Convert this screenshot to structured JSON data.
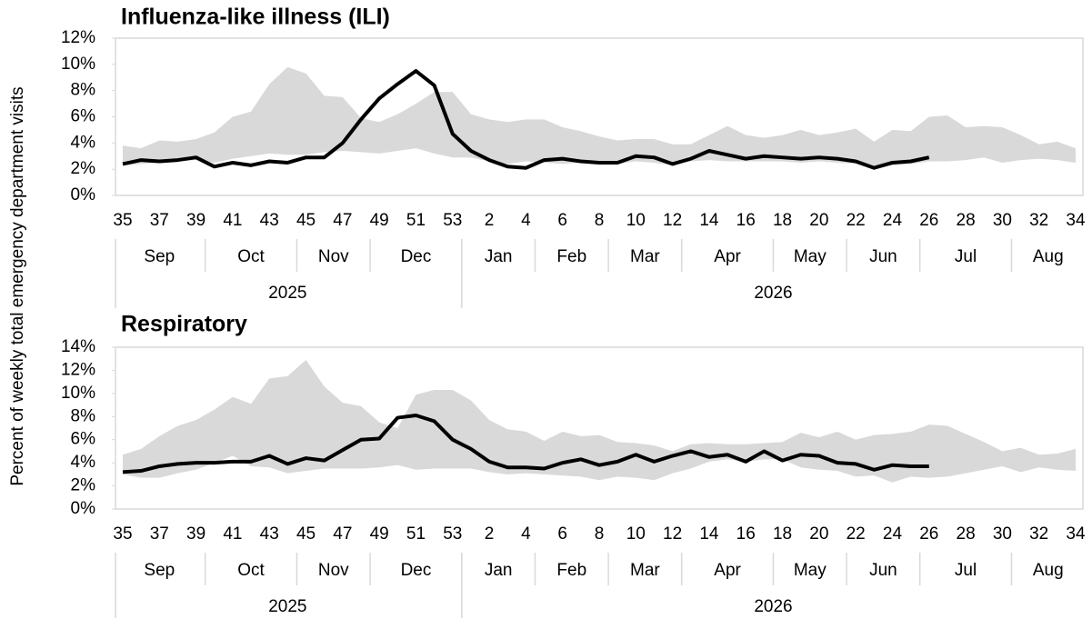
{
  "y_label": "Percent of weekly total emergency department visits",
  "chart_data": [
    {
      "type": "line",
      "title": "Influenza-like illness (ILI)",
      "categories": [
        "35",
        null,
        "37",
        null,
        "39",
        null,
        "41",
        null,
        "43",
        null,
        "45",
        null,
        "47",
        null,
        "49",
        null,
        "51",
        null,
        "53",
        null,
        "2",
        null,
        "4",
        null,
        "6",
        null,
        "8",
        null,
        "10",
        null,
        "12",
        null,
        "14",
        null,
        "16",
        null,
        "18",
        null,
        "20",
        null,
        "22",
        null,
        "24",
        null,
        "26",
        null,
        "28",
        null,
        "30",
        null,
        "32",
        null,
        "34"
      ],
      "month_groups": [
        {
          "label": "Sep",
          "span": 5
        },
        {
          "label": "Oct",
          "span": 5
        },
        {
          "label": "Nov",
          "span": 4
        },
        {
          "label": "Dec",
          "span": 5
        },
        {
          "label": "Jan",
          "span": 4
        },
        {
          "label": "Feb",
          "span": 4
        },
        {
          "label": "Mar",
          "span": 4
        },
        {
          "label": "Apr",
          "span": 5
        },
        {
          "label": "May",
          "span": 4
        },
        {
          "label": "Jun",
          "span": 4
        },
        {
          "label": "Jul",
          "span": 5
        },
        {
          "label": "Aug",
          "span": 4
        }
      ],
      "year_groups": [
        {
          "label": "2025",
          "span": 19
        },
        {
          "label": "2026",
          "span": 34
        }
      ],
      "band": {
        "color": "#d9d9d9",
        "upper": [
          3.8,
          3.6,
          4.2,
          4.1,
          4.3,
          4.8,
          6.0,
          6.4,
          8.5,
          9.8,
          9.3,
          7.6,
          7.5,
          5.9,
          5.6,
          6.2,
          7.0,
          7.9,
          7.9,
          6.2,
          5.8,
          5.6,
          5.8,
          5.8,
          5.2,
          4.9,
          4.5,
          4.2,
          4.3,
          4.3,
          3.9,
          3.9,
          4.6,
          5.3,
          4.6,
          4.4,
          4.6,
          5.0,
          4.6,
          4.8,
          5.1,
          4.1,
          5.0,
          4.9,
          6.0,
          6.1,
          5.2,
          5.3,
          5.2,
          4.6,
          3.9,
          4.1,
          3.6
        ],
        "lower": [
          2.3,
          2.4,
          2.5,
          2.6,
          2.7,
          2.5,
          2.8,
          3.0,
          3.2,
          3.1,
          3.1,
          3.3,
          3.4,
          3.3,
          3.2,
          3.4,
          3.6,
          3.2,
          2.9,
          2.9,
          2.6,
          2.4,
          2.6,
          2.5,
          2.4,
          2.5,
          2.4,
          2.4,
          2.6,
          2.5,
          2.3,
          2.6,
          2.7,
          2.6,
          2.6,
          2.6,
          2.6,
          2.5,
          2.6,
          2.5,
          2.4,
          2.0,
          2.3,
          2.4,
          2.6,
          2.6,
          2.7,
          2.9,
          2.5,
          2.7,
          2.8,
          2.7,
          2.5
        ]
      },
      "line": {
        "color": "#000000",
        "values": [
          2.4,
          2.7,
          2.6,
          2.7,
          2.9,
          2.2,
          2.5,
          2.3,
          2.6,
          2.5,
          2.9,
          2.9,
          4.0,
          5.8,
          7.4,
          8.5,
          9.5,
          8.4,
          4.7,
          3.4,
          2.7,
          2.2,
          2.1,
          2.7,
          2.8,
          2.6,
          2.5,
          2.5,
          3.0,
          2.9,
          2.4,
          2.8,
          3.4,
          3.1,
          2.8,
          3.0,
          2.9,
          2.8,
          2.9,
          2.8,
          2.6,
          2.1,
          2.5,
          2.6,
          2.9,
          null,
          null,
          null,
          null,
          null,
          null,
          null,
          null
        ]
      },
      "ylim": [
        0,
        12
      ],
      "yticks": [
        {
          "value": 0,
          "label": "0%"
        },
        {
          "value": 2,
          "label": "2%"
        },
        {
          "value": 4,
          "label": "4%"
        },
        {
          "value": 6,
          "label": "6%"
        },
        {
          "value": 8,
          "label": "8%"
        },
        {
          "value": 10,
          "label": "10%"
        },
        {
          "value": 12,
          "label": "12%"
        }
      ]
    },
    {
      "type": "line",
      "title": "Respiratory",
      "categories": [
        "35",
        null,
        "37",
        null,
        "39",
        null,
        "41",
        null,
        "43",
        null,
        "45",
        null,
        "47",
        null,
        "49",
        null,
        "51",
        null,
        "53",
        null,
        "2",
        null,
        "4",
        null,
        "6",
        null,
        "8",
        null,
        "10",
        null,
        "12",
        null,
        "14",
        null,
        "16",
        null,
        "18",
        null,
        "20",
        null,
        "22",
        null,
        "24",
        null,
        "26",
        null,
        "28",
        null,
        "30",
        null,
        "32",
        null,
        "34"
      ],
      "month_groups": [
        {
          "label": "Sep",
          "span": 5
        },
        {
          "label": "Oct",
          "span": 5
        },
        {
          "label": "Nov",
          "span": 4
        },
        {
          "label": "Dec",
          "span": 5
        },
        {
          "label": "Jan",
          "span": 4
        },
        {
          "label": "Feb",
          "span": 4
        },
        {
          "label": "Mar",
          "span": 4
        },
        {
          "label": "Apr",
          "span": 5
        },
        {
          "label": "May",
          "span": 4
        },
        {
          "label": "Jun",
          "span": 4
        },
        {
          "label": "Jul",
          "span": 5
        },
        {
          "label": "Aug",
          "span": 4
        }
      ],
      "year_groups": [
        {
          "label": "2025",
          "span": 19
        },
        {
          "label": "2026",
          "span": 34
        }
      ],
      "band": {
        "color": "#d9d9d9",
        "upper": [
          4.7,
          5.2,
          6.3,
          7.2,
          7.7,
          8.6,
          9.7,
          9.1,
          11.3,
          11.5,
          12.9,
          10.6,
          9.2,
          8.9,
          7.5,
          7.0,
          9.9,
          10.3,
          10.3,
          9.4,
          7.7,
          6.9,
          6.7,
          5.9,
          6.7,
          6.3,
          6.4,
          5.8,
          5.7,
          5.5,
          5.0,
          5.6,
          5.7,
          5.6,
          5.6,
          5.7,
          5.8,
          6.6,
          6.2,
          6.7,
          6.0,
          6.4,
          6.5,
          6.7,
          7.3,
          7.2,
          6.5,
          5.8,
          5.0,
          5.3,
          4.7,
          4.8,
          5.2
        ],
        "lower": [
          3.0,
          2.7,
          2.7,
          3.1,
          3.4,
          4.0,
          4.6,
          3.7,
          3.6,
          3.1,
          3.3,
          3.5,
          3.5,
          3.5,
          3.6,
          3.8,
          3.4,
          3.5,
          3.5,
          3.5,
          3.2,
          3.0,
          3.1,
          3.0,
          2.9,
          2.8,
          2.5,
          2.8,
          2.7,
          2.5,
          3.1,
          3.5,
          4.1,
          4.3,
          4.1,
          4.3,
          4.3,
          3.6,
          3.4,
          3.3,
          2.8,
          2.9,
          2.3,
          2.8,
          2.7,
          2.8,
          3.1,
          3.4,
          3.7,
          3.2,
          3.6,
          3.4,
          3.3
        ]
      },
      "line": {
        "color": "#000000",
        "values": [
          3.2,
          3.3,
          3.7,
          3.9,
          4.0,
          4.0,
          4.1,
          4.1,
          4.6,
          3.9,
          4.4,
          4.2,
          5.1,
          6.0,
          6.1,
          7.9,
          8.1,
          7.6,
          6.0,
          5.2,
          4.1,
          3.6,
          3.6,
          3.5,
          4.0,
          4.3,
          3.8,
          4.1,
          4.7,
          4.1,
          4.6,
          5.0,
          4.5,
          4.7,
          4.1,
          5.0,
          4.2,
          4.7,
          4.6,
          4.0,
          3.9,
          3.4,
          3.8,
          3.7,
          3.7,
          null,
          null,
          null,
          null,
          null,
          null,
          null,
          null
        ]
      },
      "ylim": [
        0,
        14
      ],
      "yticks": [
        {
          "value": 0,
          "label": "0%"
        },
        {
          "value": 2,
          "label": "2%"
        },
        {
          "value": 4,
          "label": "4%"
        },
        {
          "value": 6,
          "label": "6%"
        },
        {
          "value": 8,
          "label": "8%"
        },
        {
          "value": 10,
          "label": "10%"
        },
        {
          "value": 12,
          "label": "12%"
        },
        {
          "value": 14,
          "label": "14%"
        }
      ]
    }
  ]
}
